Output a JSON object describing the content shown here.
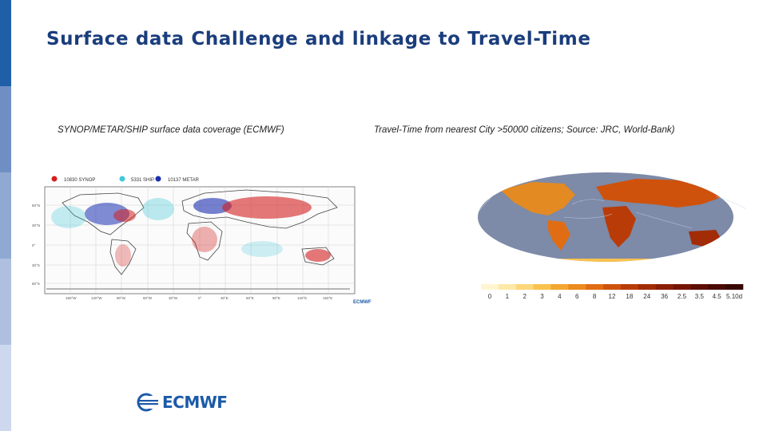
{
  "slide": {
    "title": "Surface data Challenge and linkage to Travel-Time",
    "accent_color": "#1f5fa8"
  },
  "left_figure": {
    "caption": "SYNOP/METAR/SHIP surface data coverage (ECMWF)",
    "legend": [
      {
        "label": "10830 SYNOP",
        "color": "#d42020"
      },
      {
        "label": "5331 SHIP",
        "color": "#40c8d8"
      },
      {
        "label": "10137 METAR",
        "color": "#1a2fb0"
      }
    ],
    "lat_labels": [
      "60°N",
      "30°N",
      "0°",
      "30°S",
      "60°S"
    ],
    "lon_labels": [
      "150°W",
      "120°W",
      "90°W",
      "60°W",
      "30°W",
      "0°",
      "30°E",
      "60°E",
      "90°E",
      "120°E",
      "150°E"
    ],
    "badge": "ECMWF"
  },
  "right_figure": {
    "caption": "Travel-Time from nearest City >50000 citizens; Source: JRC, World-Bank)",
    "scale_labels": [
      "0",
      "1",
      "2",
      "3",
      "4",
      "6",
      "8",
      "12",
      "18",
      "24",
      "36",
      "2.5",
      "3.5",
      "4.5",
      "5.10d"
    ],
    "scale_colors": [
      "#fff6d0",
      "#fde9a8",
      "#fcd77a",
      "#f9c24e",
      "#f3a630",
      "#ec8a1e",
      "#e06d13",
      "#cf520c",
      "#b93c08",
      "#a22c06",
      "#8b1f05",
      "#751604",
      "#5e0f03",
      "#4a0a02",
      "#380702"
    ]
  },
  "footer": {
    "logo_text": "ECMWF",
    "logo_icon": "ecmwf-globe-icon"
  }
}
